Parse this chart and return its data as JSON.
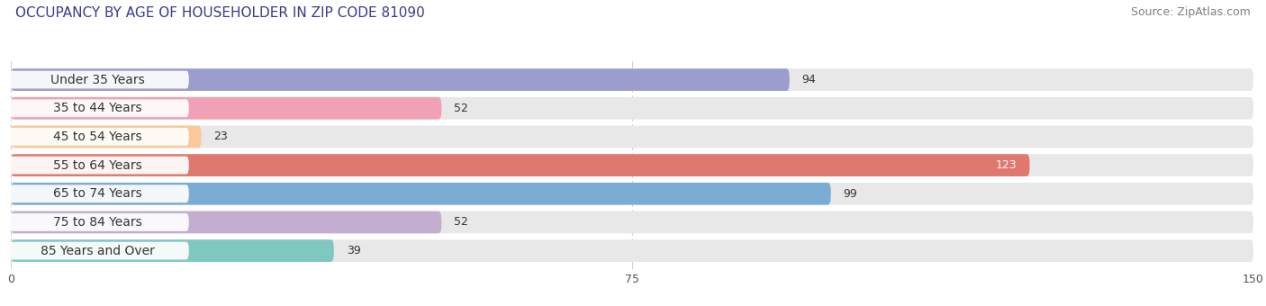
{
  "title": "OCCUPANCY BY AGE OF HOUSEHOLDER IN ZIP CODE 81090",
  "source": "Source: ZipAtlas.com",
  "categories": [
    "Under 35 Years",
    "35 to 44 Years",
    "45 to 54 Years",
    "55 to 64 Years",
    "65 to 74 Years",
    "75 to 84 Years",
    "85 Years and Over"
  ],
  "values": [
    94,
    52,
    23,
    123,
    99,
    52,
    39
  ],
  "bar_colors": [
    "#9B9DCE",
    "#F2A0B5",
    "#F9C99B",
    "#E07870",
    "#7BADD4",
    "#C4AECF",
    "#7EC8C0"
  ],
  "bar_bg_color": "#E8E8E8",
  "row_bg_colors": [
    "#F0F0F0",
    "#F0F0F0",
    "#F0F0F0",
    "#F0F0F0",
    "#F0F0F0",
    "#F0F0F0",
    "#F0F0F0"
  ],
  "xlim": [
    0,
    150
  ],
  "xticks": [
    0,
    75,
    150
  ],
  "title_fontsize": 11,
  "source_fontsize": 9,
  "label_fontsize": 10,
  "value_fontsize": 9,
  "bg_color": "#FFFFFF",
  "grid_color": "#D0D0D0",
  "label_pill_color": "#FFFFFF"
}
